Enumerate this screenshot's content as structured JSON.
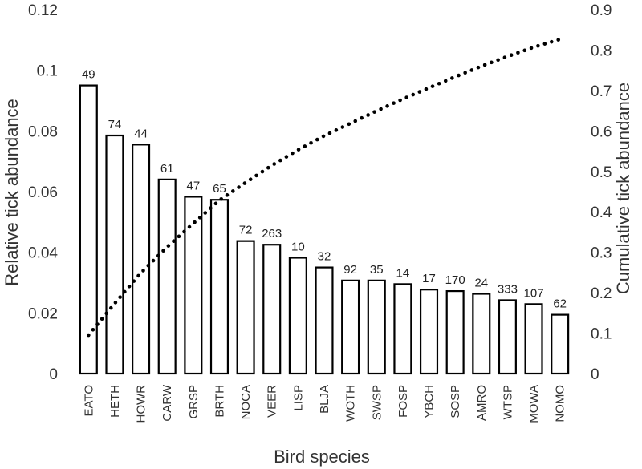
{
  "chart_data": {
    "type": "bar",
    "title": "",
    "xlabel": "Bird species",
    "ylabel": "Relative tick abundance",
    "y2label": "Cumulative tick abundance",
    "ylim": [
      0,
      0.12
    ],
    "y2lim": [
      0,
      0.9
    ],
    "y_ticks": [
      "0",
      "0.02",
      "0.04",
      "0.06",
      "0.08",
      "0.1",
      "0.12"
    ],
    "y2_ticks": [
      "0",
      "0.1",
      "0.2",
      "0.3",
      "0.4",
      "0.5",
      "0.6",
      "0.7",
      "0.8",
      "0.9"
    ],
    "grid": false,
    "categories": [
      "EATO",
      "HETH",
      "HOWR",
      "CARW",
      "GRSP",
      "BRTH",
      "NOCA",
      "VEER",
      "LISP",
      "BLJA",
      "WOTH",
      "SWSP",
      "FOSP",
      "YBCH",
      "SOSP",
      "AMRO",
      "WTSP",
      "MOWA",
      "NOMO"
    ],
    "series": [
      {
        "type": "bar",
        "axis": "left",
        "values": [
          0.095,
          0.0785,
          0.0755,
          0.064,
          0.0583,
          0.0573,
          0.0437,
          0.0425,
          0.0382,
          0.035,
          0.0307,
          0.0307,
          0.0295,
          0.0277,
          0.0272,
          0.0263,
          0.0242,
          0.0229,
          0.0194
        ],
        "data_labels": [
          "49",
          "74",
          "44",
          "61",
          "47",
          "65",
          "72",
          "263",
          "10",
          "32",
          "92",
          "35",
          "14",
          "17",
          "170",
          "24",
          "333",
          "107",
          "62"
        ]
      },
      {
        "type": "line",
        "style": "dotted",
        "axis": "right",
        "values": [
          0.095,
          0.1735,
          0.249,
          0.313,
          0.3713,
          0.4286,
          0.4723,
          0.5148,
          0.553,
          0.588,
          0.6187,
          0.6494,
          0.6789,
          0.7066,
          0.7338,
          0.7601,
          0.7843,
          0.8072,
          0.8266
        ]
      }
    ],
    "colors": {
      "bar_fill": "#ffffff",
      "bar_stroke": "#000000",
      "line": "#000000",
      "text": "#333333"
    }
  }
}
